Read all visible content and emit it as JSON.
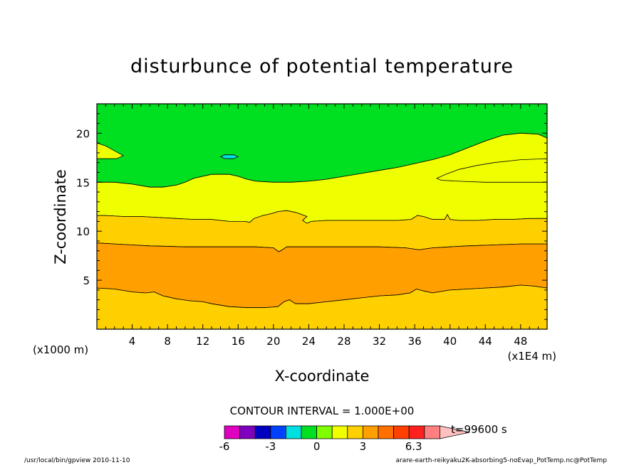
{
  "chart_data": {
    "type": "contour",
    "title": "disturbunce of potential temperature",
    "xlabel": "X-coordinate",
    "ylabel": "Z-coordinate",
    "x_scale_label": "(x1E4 m)",
    "y_scale_label": "(x1000 m)",
    "xlim": [
      0,
      51
    ],
    "ylim": [
      0,
      23
    ],
    "x_ticks": [
      4,
      8,
      12,
      16,
      20,
      24,
      28,
      32,
      36,
      40,
      44,
      48
    ],
    "y_ticks": [
      5,
      10,
      15,
      20
    ],
    "contour_interval_text": "CONTOUR INTERVAL = 1.000E+00",
    "time_label": "t=99600 s",
    "colorbar": {
      "colors": [
        "#e000c0",
        "#8000c0",
        "#0000c0",
        "#0040ff",
        "#00e0e0",
        "#00e020",
        "#80ff00",
        "#f0ff00",
        "#ffd000",
        "#ffa000",
        "#ff7000",
        "#ff4000",
        "#ff2020",
        "#ff8080",
        "#ffc0c0"
      ],
      "tick_labels": [
        "-6",
        "-3",
        "0",
        "3",
        "6.3"
      ]
    },
    "regions": [
      {
        "level": "0 to 1",
        "color": "#00e020",
        "points": [
          [
            0,
            23
          ],
          [
            51,
            23
          ],
          [
            51,
            19.5
          ],
          [
            50,
            19.9
          ],
          [
            48,
            20
          ],
          [
            46,
            19.8
          ],
          [
            44,
            19.2
          ],
          [
            42,
            18.5
          ],
          [
            40,
            17.8
          ],
          [
            38,
            17.3
          ],
          [
            36,
            16.9
          ],
          [
            34,
            16.5
          ],
          [
            32,
            16.2
          ],
          [
            30,
            15.9
          ],
          [
            28,
            15.6
          ],
          [
            26,
            15.3
          ],
          [
            24,
            15.1
          ],
          [
            22,
            15
          ],
          [
            20,
            15
          ],
          [
            18,
            15.1
          ],
          [
            17,
            15.3
          ],
          [
            16,
            15.6
          ],
          [
            15,
            15.8
          ],
          [
            13,
            15.8
          ],
          [
            11,
            15.4
          ],
          [
            10,
            15
          ],
          [
            9,
            14.7
          ],
          [
            7.5,
            14.5
          ],
          [
            6,
            14.5
          ],
          [
            4,
            14.8
          ],
          [
            2,
            15
          ],
          [
            0,
            15
          ]
        ]
      },
      {
        "level": "1 to 2",
        "color": "#f0ff00",
        "points": [
          [
            0,
            15
          ],
          [
            2,
            15
          ],
          [
            4,
            14.8
          ],
          [
            6,
            14.5
          ],
          [
            7.5,
            14.5
          ],
          [
            9,
            14.7
          ],
          [
            10,
            15
          ],
          [
            11,
            15.4
          ],
          [
            13,
            15.8
          ],
          [
            15,
            15.8
          ],
          [
            16,
            15.6
          ],
          [
            17,
            15.3
          ],
          [
            18,
            15.1
          ],
          [
            20,
            15
          ],
          [
            22,
            15
          ],
          [
            24,
            15.1
          ],
          [
            26,
            15.3
          ],
          [
            28,
            15.6
          ],
          [
            30,
            15.9
          ],
          [
            32,
            16.2
          ],
          [
            34,
            16.5
          ],
          [
            36,
            16.9
          ],
          [
            38,
            17.3
          ],
          [
            40,
            17.8
          ],
          [
            42,
            18.5
          ],
          [
            44,
            19.2
          ],
          [
            46,
            19.8
          ],
          [
            48,
            20
          ],
          [
            50,
            19.9
          ],
          [
            51,
            19.5
          ],
          [
            51,
            11.3
          ],
          [
            49,
            11.3
          ],
          [
            47,
            11.2
          ],
          [
            45,
            11.2
          ],
          [
            43,
            11.1
          ],
          [
            41,
            11.1
          ],
          [
            40,
            11.2
          ],
          [
            39.7,
            11.7
          ],
          [
            39.4,
            11.2
          ],
          [
            38,
            11.2
          ],
          [
            37,
            11.5
          ],
          [
            36.3,
            11.6
          ],
          [
            35.6,
            11.2
          ],
          [
            34,
            11.1
          ],
          [
            32,
            11.1
          ],
          [
            30,
            11.1
          ],
          [
            28,
            11.1
          ],
          [
            26,
            11.1
          ],
          [
            24.3,
            11
          ],
          [
            23.8,
            10.8
          ],
          [
            23.3,
            11.1
          ],
          [
            23.8,
            11.5
          ],
          [
            22.6,
            11.9
          ],
          [
            21.5,
            12.1
          ],
          [
            20.5,
            12
          ],
          [
            19.8,
            11.8
          ],
          [
            18.8,
            11.6
          ],
          [
            17.8,
            11.3
          ],
          [
            17.3,
            10.9
          ],
          [
            16.8,
            11
          ],
          [
            15,
            11
          ],
          [
            13,
            11.2
          ],
          [
            11,
            11.2
          ],
          [
            9,
            11.3
          ],
          [
            7,
            11.4
          ],
          [
            5,
            11.5
          ],
          [
            3,
            11.5
          ],
          [
            1,
            11.6
          ],
          [
            0,
            11.6
          ]
        ]
      },
      {
        "level": "2 to 3",
        "color": "#ffd000",
        "points": [
          [
            0,
            11.6
          ],
          [
            1,
            11.6
          ],
          [
            3,
            11.5
          ],
          [
            5,
            11.5
          ],
          [
            7,
            11.4
          ],
          [
            9,
            11.3
          ],
          [
            11,
            11.2
          ],
          [
            13,
            11.2
          ],
          [
            15,
            11
          ],
          [
            16.8,
            11
          ],
          [
            17.3,
            10.9
          ],
          [
            17.8,
            11.3
          ],
          [
            18.8,
            11.6
          ],
          [
            19.8,
            11.8
          ],
          [
            20.5,
            12
          ],
          [
            21.5,
            12.1
          ],
          [
            22.6,
            11.9
          ],
          [
            23.8,
            11.5
          ],
          [
            23.3,
            11.1
          ],
          [
            23.8,
            10.8
          ],
          [
            24.3,
            11
          ],
          [
            26,
            11.1
          ],
          [
            28,
            11.1
          ],
          [
            30,
            11.1
          ],
          [
            32,
            11.1
          ],
          [
            34,
            11.1
          ],
          [
            35.6,
            11.2
          ],
          [
            36.3,
            11.6
          ],
          [
            37,
            11.5
          ],
          [
            38,
            11.2
          ],
          [
            39.4,
            11.2
          ],
          [
            39.7,
            11.7
          ],
          [
            40,
            11.2
          ],
          [
            41,
            11.1
          ],
          [
            43,
            11.1
          ],
          [
            45,
            11.2
          ],
          [
            47,
            11.2
          ],
          [
            49,
            11.3
          ],
          [
            51,
            11.3
          ],
          [
            51,
            8.7
          ],
          [
            48,
            8.7
          ],
          [
            45,
            8.6
          ],
          [
            42,
            8.5
          ],
          [
            40,
            8.4
          ],
          [
            38,
            8.3
          ],
          [
            36.5,
            8.1
          ],
          [
            35,
            8.3
          ],
          [
            32,
            8.4
          ],
          [
            28,
            8.4
          ],
          [
            24,
            8.4
          ],
          [
            21.5,
            8.4
          ],
          [
            21,
            8.1
          ],
          [
            20.6,
            7.9
          ],
          [
            20,
            8.3
          ],
          [
            18,
            8.4
          ],
          [
            14,
            8.4
          ],
          [
            10,
            8.4
          ],
          [
            6,
            8.5
          ],
          [
            4,
            8.6
          ],
          [
            2,
            8.7
          ],
          [
            0,
            8.8
          ]
        ]
      },
      {
        "level": "3 to 4",
        "color": "#ffa000",
        "points": [
          [
            0,
            8.8
          ],
          [
            2,
            8.7
          ],
          [
            4,
            8.6
          ],
          [
            6,
            8.5
          ],
          [
            10,
            8.4
          ],
          [
            14,
            8.4
          ],
          [
            18,
            8.4
          ],
          [
            20,
            8.3
          ],
          [
            20.6,
            7.9
          ],
          [
            21,
            8.1
          ],
          [
            21.5,
            8.4
          ],
          [
            24,
            8.4
          ],
          [
            28,
            8.4
          ],
          [
            32,
            8.4
          ],
          [
            35,
            8.3
          ],
          [
            36.5,
            8.1
          ],
          [
            38,
            8.3
          ],
          [
            40,
            8.4
          ],
          [
            42,
            8.5
          ],
          [
            45,
            8.6
          ],
          [
            48,
            8.7
          ],
          [
            51,
            8.7
          ],
          [
            51,
            4.2
          ],
          [
            49.5,
            4.4
          ],
          [
            48,
            4.5
          ],
          [
            46,
            4.3
          ],
          [
            44,
            4.2
          ],
          [
            42,
            4.1
          ],
          [
            40,
            4
          ],
          [
            38,
            3.7
          ],
          [
            37,
            3.9
          ],
          [
            36.2,
            4.1
          ],
          [
            35.5,
            3.7
          ],
          [
            34,
            3.5
          ],
          [
            32,
            3.4
          ],
          [
            30,
            3.2
          ],
          [
            28,
            3
          ],
          [
            26,
            2.8
          ],
          [
            24,
            2.6
          ],
          [
            22.5,
            2.6
          ],
          [
            21.8,
            3
          ],
          [
            21.2,
            2.8
          ],
          [
            20.5,
            2.3
          ],
          [
            19,
            2.2
          ],
          [
            17,
            2.2
          ],
          [
            15,
            2.3
          ],
          [
            13,
            2.6
          ],
          [
            12,
            2.8
          ],
          [
            10.5,
            2.9
          ],
          [
            9,
            3.1
          ],
          [
            7.5,
            3.4
          ],
          [
            6.5,
            3.8
          ],
          [
            5.5,
            3.7
          ],
          [
            4,
            3.8
          ],
          [
            2,
            4.1
          ],
          [
            0,
            4.2
          ]
        ]
      },
      {
        "level": "2 to 3",
        "color": "#ffd000",
        "points": [
          [
            0,
            4.2
          ],
          [
            2,
            4.1
          ],
          [
            4,
            3.8
          ],
          [
            5.5,
            3.7
          ],
          [
            6.5,
            3.8
          ],
          [
            7.5,
            3.4
          ],
          [
            9,
            3.1
          ],
          [
            10.5,
            2.9
          ],
          [
            12,
            2.8
          ],
          [
            13,
            2.6
          ],
          [
            15,
            2.3
          ],
          [
            17,
            2.2
          ],
          [
            19,
            2.2
          ],
          [
            20.5,
            2.3
          ],
          [
            21.2,
            2.8
          ],
          [
            21.8,
            3
          ],
          [
            22.5,
            2.6
          ],
          [
            24,
            2.6
          ],
          [
            26,
            2.8
          ],
          [
            28,
            3
          ],
          [
            30,
            3.2
          ],
          [
            32,
            3.4
          ],
          [
            34,
            3.5
          ],
          [
            35.5,
            3.7
          ],
          [
            36.2,
            4.1
          ],
          [
            37,
            3.9
          ],
          [
            38,
            3.7
          ],
          [
            40,
            4
          ],
          [
            42,
            4.1
          ],
          [
            44,
            4.2
          ],
          [
            46,
            4.3
          ],
          [
            48,
            4.5
          ],
          [
            49.5,
            4.4
          ],
          [
            51,
            4.2
          ],
          [
            51,
            0
          ],
          [
            0,
            0
          ]
        ]
      },
      {
        "level": "1 to 2",
        "color": "#f0ff00",
        "points": [
          [
            0,
            19
          ],
          [
            1,
            18.7
          ],
          [
            2,
            18.2
          ],
          [
            3,
            17.7
          ],
          [
            2.2,
            17.4
          ],
          [
            1,
            17.4
          ],
          [
            0,
            17.4
          ]
        ]
      },
      {
        "level": "1 to 2",
        "color": "#f0ff00",
        "points": [
          [
            51,
            17.4
          ],
          [
            48,
            17.3
          ],
          [
            45,
            17
          ],
          [
            43,
            16.7
          ],
          [
            41,
            16.3
          ],
          [
            39.5,
            15.8
          ],
          [
            38.5,
            15.4
          ],
          [
            39,
            15.2
          ],
          [
            41,
            15.1
          ],
          [
            44,
            15
          ],
          [
            47,
            15
          ],
          [
            51,
            15
          ]
        ]
      },
      {
        "level": "-1 to 0",
        "color": "#00e0e0",
        "points": [
          [
            14,
            17.6
          ],
          [
            14.5,
            17.8
          ],
          [
            15.5,
            17.8
          ],
          [
            16,
            17.6
          ],
          [
            15.5,
            17.4
          ],
          [
            14.5,
            17.4
          ]
        ]
      }
    ]
  },
  "footer": {
    "left": "/usr/local/bin/gpview   2010-11-10",
    "right": "arare-earth-reikyaku2K-absorbing5-noEvap_PotTemp.nc@PotTemp"
  }
}
